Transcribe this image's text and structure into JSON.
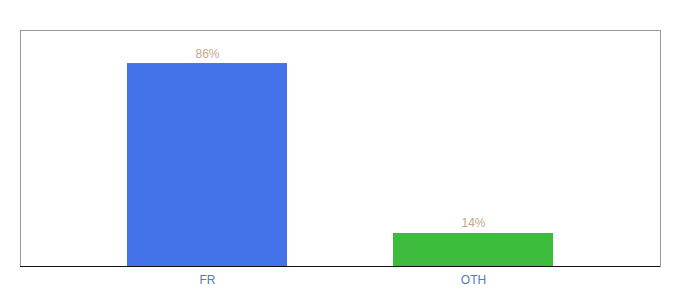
{
  "chart_data": {
    "type": "bar",
    "categories": [
      "FR",
      "OTH"
    ],
    "values": [
      86,
      14
    ],
    "colors": [
      "#4472e8",
      "#3dbb3d"
    ],
    "value_labels": [
      "86%",
      "14%"
    ],
    "data_labels": true,
    "ylim": [
      0,
      100
    ],
    "tick_labels": "x"
  }
}
